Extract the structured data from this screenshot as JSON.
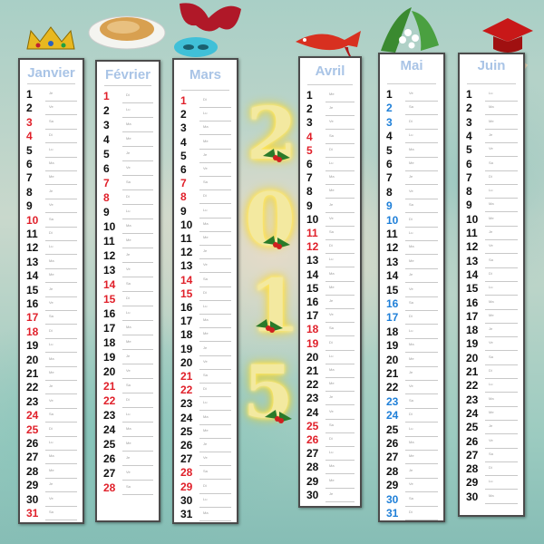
{
  "year": [
    "2",
    "0",
    "1",
    "5"
  ],
  "weekday_names": [
    "Lu",
    "Ma",
    "Me",
    "Je",
    "Ve",
    "Sa",
    "Di"
  ],
  "months": [
    {
      "name": "Janvier",
      "days": 31,
      "first_weekday": 3,
      "highlight_color": "#e0202a",
      "highlight": [
        3,
        4,
        10,
        17,
        18,
        24,
        25,
        31
      ]
    },
    {
      "name": "Février",
      "days": 28,
      "first_weekday": 6,
      "highlight_color": "#e0202a",
      "highlight": [
        1,
        7,
        8,
        14,
        15,
        21,
        22,
        28
      ]
    },
    {
      "name": "Mars",
      "days": 31,
      "first_weekday": 6,
      "highlight_color": "#e0202a",
      "highlight": [
        1,
        7,
        8,
        14,
        15,
        21,
        22,
        28,
        29
      ]
    },
    {
      "name": "Avril",
      "days": 30,
      "first_weekday": 2,
      "highlight_color": "#e0202a",
      "highlight": [
        4,
        5,
        11,
        12,
        18,
        19,
        25,
        26
      ]
    },
    {
      "name": "Mai",
      "days": 31,
      "first_weekday": 4,
      "highlight_color": "#1e7fd8",
      "highlight": [
        2,
        3,
        9,
        10,
        16,
        17,
        23,
        24,
        30,
        31
      ]
    },
    {
      "name": "Juin",
      "days": 30,
      "first_weekday": 0,
      "highlight_color": "#e0202a",
      "highlight": []
    }
  ],
  "decorations": [
    "crown-icon",
    "crepes-plate-icon",
    "carnival-mask-icon",
    "fish-icon",
    "lily-of-the-valley-icon",
    "graduation-cap-icon",
    "holly-icon"
  ]
}
